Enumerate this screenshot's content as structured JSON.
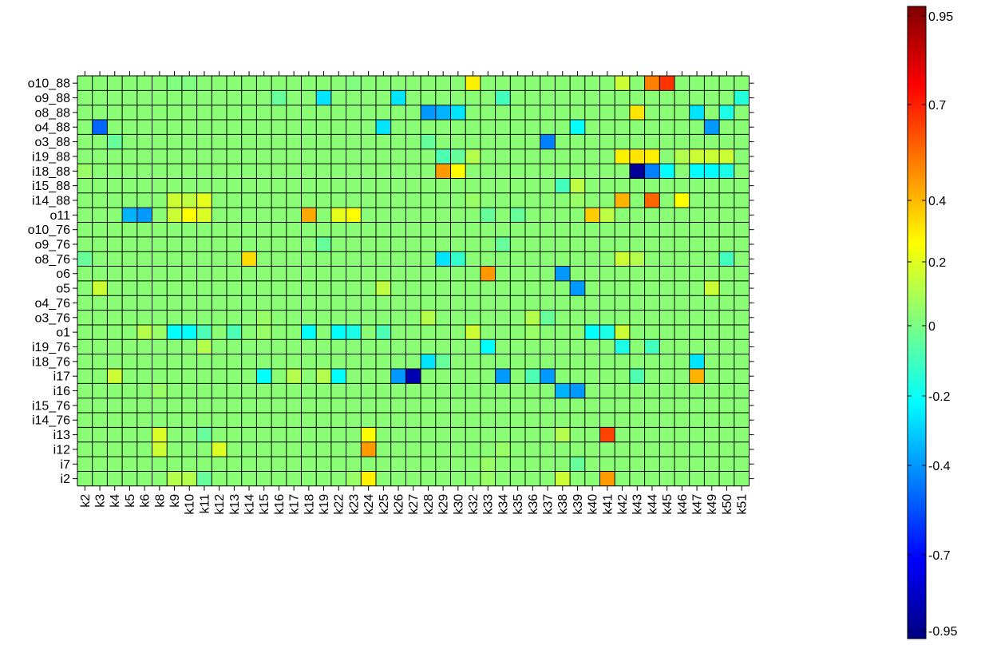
{
  "chart_data": {
    "type": "heatmap",
    "title": "",
    "xlabel": "",
    "ylabel": "",
    "x_categories": [
      "k2",
      "k3",
      "k4",
      "k5",
      "k6",
      "k8",
      "k9",
      "k10",
      "k11",
      "k12",
      "k13",
      "k14",
      "k15",
      "k16",
      "k17",
      "k18",
      "k19",
      "k22",
      "k23",
      "k24",
      "k25",
      "k26",
      "k27",
      "k28",
      "k29",
      "k30",
      "k32",
      "k33",
      "k34",
      "k35",
      "k36",
      "k37",
      "k38",
      "k39",
      "k40",
      "k41",
      "k42",
      "k43",
      "k44",
      "k45",
      "k46",
      "k47",
      "k49",
      "k50",
      "k51"
    ],
    "y_categories": [
      "o10_88",
      "o9_88",
      "o8_88",
      "o4_88",
      "o3_88",
      "i19_88",
      "i18_88",
      "i15_88",
      "i14_88",
      "o11",
      "o10_76",
      "o9_76",
      "o8_76",
      "o6",
      "o5",
      "o4_76",
      "o3_76",
      "o1",
      "i19_76",
      "i18_76",
      "i17",
      "i16",
      "i15_76",
      "i14_76",
      "i13",
      "i12",
      "i7",
      "i2"
    ],
    "default_value": 0.02,
    "cells": [
      [
        "o10_88",
        "k32",
        0.28
      ],
      [
        "o10_88",
        "k42",
        0.15
      ],
      [
        "o10_88",
        "k44",
        0.5
      ],
      [
        "o10_88",
        "k45",
        0.65
      ],
      [
        "o10_88",
        "k9",
        0.0
      ],
      [
        "o10_88",
        "k10",
        0.0
      ],
      [
        "o10_88",
        "k23",
        0.0
      ],
      [
        "o9_88",
        "k19",
        -0.3
      ],
      [
        "o9_88",
        "k26",
        -0.3
      ],
      [
        "o9_88",
        "k34",
        -0.12
      ],
      [
        "o9_88",
        "k51",
        -0.18
      ],
      [
        "o9_88",
        "k16",
        -0.05
      ],
      [
        "o8_88",
        "k28",
        -0.45
      ],
      [
        "o8_88",
        "k29",
        -0.4
      ],
      [
        "o8_88",
        "k30",
        -0.3
      ],
      [
        "o8_88",
        "k43",
        0.3
      ],
      [
        "o8_88",
        "k47",
        -0.3
      ],
      [
        "o8_88",
        "k50",
        -0.2
      ],
      [
        "o4_88",
        "k3",
        -0.55
      ],
      [
        "o4_88",
        "k25",
        -0.3
      ],
      [
        "o4_88",
        "k39",
        -0.25
      ],
      [
        "o4_88",
        "k49",
        -0.45
      ],
      [
        "o3_88",
        "k4",
        -0.05
      ],
      [
        "o3_88",
        "k28",
        -0.05
      ],
      [
        "o3_88",
        "k37",
        -0.5
      ],
      [
        "i19_88",
        "k29",
        -0.1
      ],
      [
        "i19_88",
        "k30",
        -0.05
      ],
      [
        "i19_88",
        "k32",
        0.1
      ],
      [
        "i19_88",
        "k42",
        0.28
      ],
      [
        "i19_88",
        "k43",
        0.3
      ],
      [
        "i19_88",
        "k44",
        0.28
      ],
      [
        "i19_88",
        "k46",
        0.1
      ],
      [
        "i19_88",
        "k47",
        0.15
      ],
      [
        "i19_88",
        "k49",
        0.15
      ],
      [
        "i19_88",
        "k50",
        0.15
      ],
      [
        "i18_88",
        "k29",
        0.45
      ],
      [
        "i18_88",
        "k30",
        0.25
      ],
      [
        "i18_88",
        "k43",
        -0.95
      ],
      [
        "i18_88",
        "k44",
        -0.5
      ],
      [
        "i18_88",
        "k45",
        -0.25
      ],
      [
        "i18_88",
        "k47",
        -0.25
      ],
      [
        "i18_88",
        "k49",
        -0.25
      ],
      [
        "i18_88",
        "k50",
        -0.2
      ],
      [
        "i18_88",
        "k2",
        0.05
      ],
      [
        "i15_88",
        "k38",
        -0.12
      ],
      [
        "i15_88",
        "k39",
        0.12
      ],
      [
        "i14_88",
        "k9",
        0.15
      ],
      [
        "i14_88",
        "k10",
        0.12
      ],
      [
        "i14_88",
        "k11",
        0.2
      ],
      [
        "i14_88",
        "k42",
        0.4
      ],
      [
        "i14_88",
        "k44",
        0.55
      ],
      [
        "i14_88",
        "k46",
        0.25
      ],
      [
        "i14_88",
        "k32",
        0.05
      ],
      [
        "i14_88",
        "k39",
        0.05
      ],
      [
        "o11",
        "k5",
        -0.4
      ],
      [
        "o11",
        "k6",
        -0.45
      ],
      [
        "o11",
        "k9",
        0.15
      ],
      [
        "o11",
        "k10",
        0.25
      ],
      [
        "o11",
        "k11",
        0.18
      ],
      [
        "o11",
        "k18",
        0.42
      ],
      [
        "o11",
        "k22",
        0.2
      ],
      [
        "o11",
        "k23",
        0.25
      ],
      [
        "o11",
        "k33",
        -0.05
      ],
      [
        "o11",
        "k35",
        -0.05
      ],
      [
        "o11",
        "k40",
        0.35
      ],
      [
        "o11",
        "k41",
        0.12
      ],
      [
        "o9_76",
        "k19",
        -0.05
      ],
      [
        "o9_76",
        "k34",
        -0.05
      ],
      [
        "o8_76",
        "k14",
        0.32
      ],
      [
        "o8_76",
        "k29",
        -0.3
      ],
      [
        "o8_76",
        "k30",
        -0.15
      ],
      [
        "o8_76",
        "k42",
        0.15
      ],
      [
        "o8_76",
        "k43",
        0.1
      ],
      [
        "o8_76",
        "k50",
        -0.12
      ],
      [
        "o8_76",
        "k2",
        -0.05
      ],
      [
        "o6",
        "k33",
        0.45
      ],
      [
        "o6",
        "k38",
        -0.45
      ],
      [
        "o5",
        "k3",
        0.15
      ],
      [
        "o5",
        "k25",
        0.12
      ],
      [
        "o5",
        "k39",
        -0.45
      ],
      [
        "o5",
        "k49",
        0.15
      ],
      [
        "o3_76",
        "k15",
        0.05
      ],
      [
        "o3_76",
        "k28",
        0.1
      ],
      [
        "o3_76",
        "k36",
        0.1
      ],
      [
        "o3_76",
        "k37",
        -0.05
      ],
      [
        "o1",
        "k6",
        0.1
      ],
      [
        "o1",
        "k8",
        0.05
      ],
      [
        "o1",
        "k9",
        -0.25
      ],
      [
        "o1",
        "k10",
        -0.25
      ],
      [
        "o1",
        "k11",
        -0.1
      ],
      [
        "o1",
        "k13",
        -0.1
      ],
      [
        "o1",
        "k15",
        0.05
      ],
      [
        "o1",
        "k18",
        -0.25
      ],
      [
        "o1",
        "k22",
        -0.25
      ],
      [
        "o1",
        "k23",
        -0.2
      ],
      [
        "o1",
        "k25",
        -0.1
      ],
      [
        "o1",
        "k32",
        0.15
      ],
      [
        "o1",
        "k36",
        0.05
      ],
      [
        "o1",
        "k40",
        -0.25
      ],
      [
        "o1",
        "k41",
        -0.2
      ],
      [
        "o1",
        "k42",
        0.15
      ],
      [
        "i19_76",
        "k11",
        0.1
      ],
      [
        "i19_76",
        "k33",
        -0.25
      ],
      [
        "i19_76",
        "k42",
        -0.2
      ],
      [
        "i19_76",
        "k44",
        -0.12
      ],
      [
        "i18_76",
        "k28",
        -0.3
      ],
      [
        "i18_76",
        "k29",
        -0.05
      ],
      [
        "i18_76",
        "k47",
        -0.3
      ],
      [
        "i17",
        "k4",
        0.15
      ],
      [
        "i17",
        "k15",
        -0.25
      ],
      [
        "i17",
        "k17",
        0.1
      ],
      [
        "i17",
        "k19",
        0.1
      ],
      [
        "i17",
        "k22",
        -0.25
      ],
      [
        "i17",
        "k26",
        -0.45
      ],
      [
        "i17",
        "k27",
        -0.9
      ],
      [
        "i17",
        "k34",
        -0.45
      ],
      [
        "i17",
        "k36",
        -0.1
      ],
      [
        "i17",
        "k37",
        -0.45
      ],
      [
        "i17",
        "k47",
        0.4
      ],
      [
        "i17",
        "k43",
        -0.1
      ],
      [
        "i16",
        "k38",
        -0.4
      ],
      [
        "i16",
        "k39",
        -0.45
      ],
      [
        "i16",
        "k8",
        0.05
      ],
      [
        "i13",
        "k8",
        0.18
      ],
      [
        "i13",
        "k24",
        0.25
      ],
      [
        "i13",
        "k41",
        0.62
      ],
      [
        "i13",
        "k11",
        -0.05
      ],
      [
        "i13",
        "k38",
        0.1
      ],
      [
        "i12",
        "k8",
        0.15
      ],
      [
        "i12",
        "k12",
        0.18
      ],
      [
        "i12",
        "k24",
        0.45
      ],
      [
        "i12",
        "k34",
        0.05
      ],
      [
        "i7",
        "k39",
        -0.05
      ],
      [
        "i7",
        "k33",
        0.05
      ],
      [
        "i2",
        "k9",
        0.1
      ],
      [
        "i2",
        "k10",
        0.1
      ],
      [
        "i2",
        "k11",
        -0.05
      ],
      [
        "i2",
        "k23",
        0.05
      ],
      [
        "i2",
        "k24",
        0.28
      ],
      [
        "i2",
        "k38",
        0.15
      ],
      [
        "i2",
        "k41",
        0.45
      ],
      [
        "i2",
        "k33",
        0.05
      ]
    ],
    "colorbar": {
      "min": -1.0,
      "max": 1.0,
      "ticks": [
        0.95,
        0.7,
        0.4,
        0.2,
        0,
        -0.2,
        -0.4,
        -0.7,
        -0.95
      ],
      "tick_labels": [
        "0.95",
        "0.7",
        "0.4",
        "0.2",
        "0",
        "-0.2",
        "-0.4",
        "-0.7",
        "-0.95"
      ],
      "colormap": "jet"
    },
    "grid": true,
    "legend": "colorbar-right"
  }
}
